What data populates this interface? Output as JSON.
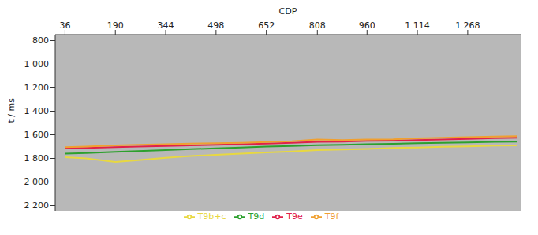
{
  "chart_data": {
    "type": "line",
    "x_label": "CDP",
    "y_label": "t / ms",
    "x": [
      36,
      100,
      190,
      260,
      344,
      420,
      498,
      575,
      652,
      730,
      808,
      885,
      960,
      1040,
      1114,
      1190,
      1268,
      1350,
      1420
    ],
    "series": [
      {
        "name": "T9b+c",
        "color": "#e8d840",
        "values": [
          1790,
          1800,
          1830,
          1815,
          1795,
          1780,
          1770,
          1760,
          1750,
          1742,
          1730,
          1725,
          1720,
          1712,
          1708,
          1702,
          1698,
          1692,
          1690
        ]
      },
      {
        "name": "T9d",
        "color": "#2ca02c",
        "values": [
          1760,
          1755,
          1745,
          1738,
          1730,
          1722,
          1715,
          1708,
          1700,
          1695,
          1688,
          1685,
          1680,
          1676,
          1672,
          1668,
          1665,
          1660,
          1658
        ]
      },
      {
        "name": "T9e",
        "color": "#e0204a",
        "values": [
          1715,
          1712,
          1705,
          1700,
          1695,
          1690,
          1685,
          1680,
          1675,
          1668,
          1660,
          1658,
          1652,
          1650,
          1645,
          1640,
          1635,
          1628,
          1625
        ]
      },
      {
        "name": "T9f",
        "color": "#f0a030",
        "values": [
          1705,
          1700,
          1690,
          1685,
          1680,
          1675,
          1672,
          1668,
          1662,
          1655,
          1640,
          1645,
          1640,
          1638,
          1630,
          1625,
          1620,
          1615,
          1612
        ]
      }
    ],
    "xlim": [
      6,
      1430
    ],
    "xticks": [
      36,
      190,
      344,
      498,
      652,
      808,
      960,
      {
        "value": 1114,
        "label": "1 114"
      },
      {
        "value": 1268,
        "label": "1 268"
      }
    ],
    "ylim": [
      750,
      2250
    ],
    "yticks": [
      800,
      {
        "value": 1000,
        "label": "1 000"
      },
      {
        "value": 1200,
        "label": "1 200"
      },
      {
        "value": 1400,
        "label": "1 400"
      },
      {
        "value": 1600,
        "label": "1 600"
      },
      {
        "value": 1800,
        "label": "1 800"
      },
      {
        "value": 2000,
        "label": "2 000"
      },
      {
        "value": 2200,
        "label": "2 200"
      }
    ],
    "grid": false,
    "legend": "bottom"
  }
}
